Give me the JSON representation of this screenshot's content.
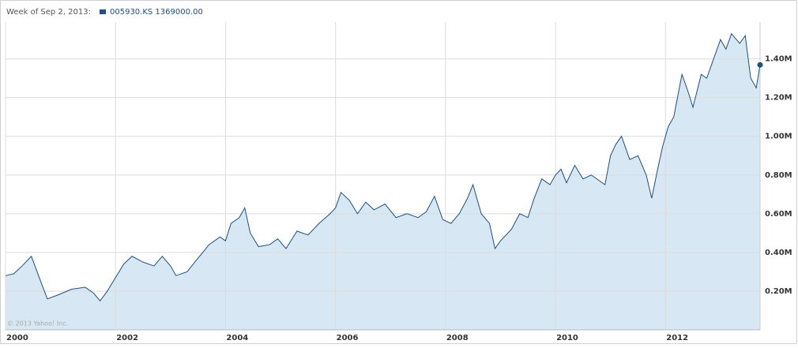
{
  "chart_data": {
    "type": "area",
    "header": "Week of Sep 2, 2013:",
    "watermark": "© 2013 Yahoo! Inc.",
    "series": [
      {
        "name": "005930.KS 1369000.00",
        "color": "#1d4f80",
        "fill": "#d7e7f3",
        "x": [
          2000.0,
          2000.15,
          2000.3,
          2000.47,
          2000.6,
          2000.76,
          2000.95,
          2001.2,
          2001.45,
          2001.6,
          2001.72,
          2001.85,
          2002.0,
          2002.15,
          2002.3,
          2002.5,
          2002.7,
          2002.85,
          2003.0,
          2003.1,
          2003.3,
          2003.5,
          2003.7,
          2003.9,
          2004.0,
          2004.1,
          2004.25,
          2004.35,
          2004.45,
          2004.6,
          2004.8,
          2004.95,
          2005.1,
          2005.3,
          2005.5,
          2005.7,
          2005.9,
          2006.0,
          2006.1,
          2006.25,
          2006.4,
          2006.55,
          2006.7,
          2006.9,
          2007.1,
          2007.3,
          2007.5,
          2007.65,
          2007.8,
          2007.95,
          2008.1,
          2008.25,
          2008.4,
          2008.5,
          2008.65,
          2008.8,
          2008.9,
          2009.0,
          2009.2,
          2009.35,
          2009.5,
          2009.6,
          2009.75,
          2009.9,
          2010.0,
          2010.1,
          2010.2,
          2010.35,
          2010.5,
          2010.65,
          2010.8,
          2010.9,
          2011.0,
          2011.1,
          2011.2,
          2011.35,
          2011.5,
          2011.65,
          2011.75,
          2011.85,
          2011.95,
          2012.05,
          2012.15,
          2012.3,
          2012.4,
          2012.5,
          2012.65,
          2012.75,
          2012.9,
          2013.0,
          2013.1,
          2013.2,
          2013.35,
          2013.45,
          2013.55,
          2013.65,
          2013.72
        ],
        "values": [
          280000,
          290000,
          330000,
          380000,
          280000,
          160000,
          180000,
          210000,
          220000,
          190000,
          150000,
          200000,
          270000,
          340000,
          380000,
          350000,
          330000,
          380000,
          330000,
          280000,
          300000,
          370000,
          440000,
          480000,
          460000,
          550000,
          580000,
          630000,
          500000,
          430000,
          440000,
          470000,
          420000,
          510000,
          490000,
          550000,
          600000,
          630000,
          710000,
          670000,
          600000,
          660000,
          620000,
          650000,
          580000,
          600000,
          580000,
          610000,
          690000,
          570000,
          550000,
          600000,
          680000,
          750000,
          600000,
          550000,
          420000,
          460000,
          520000,
          600000,
          580000,
          670000,
          780000,
          750000,
          800000,
          830000,
          760000,
          850000,
          780000,
          800000,
          770000,
          750000,
          900000,
          960000,
          1000000,
          880000,
          900000,
          800000,
          680000,
          820000,
          950000,
          1050000,
          1100000,
          1320000,
          1240000,
          1150000,
          1320000,
          1300000,
          1420000,
          1500000,
          1450000,
          1530000,
          1480000,
          1520000,
          1300000,
          1250000,
          1369000
        ]
      }
    ],
    "xlim": [
      2000,
      2013.72
    ],
    "xticks": [
      2000,
      2002,
      2004,
      2006,
      2008,
      2010,
      2012
    ],
    "ylim": [
      0,
      1590000
    ],
    "yticks": [
      {
        "value": 200000,
        "label": "0.20M"
      },
      {
        "value": 400000,
        "label": "0.40M"
      },
      {
        "value": 600000,
        "label": "0.60M"
      },
      {
        "value": 800000,
        "label": "0.80M"
      },
      {
        "value": 1000000,
        "label": "1.00M"
      },
      {
        "value": 1200000,
        "label": "1.20M"
      },
      {
        "value": 1400000,
        "label": "1.40M"
      }
    ],
    "grid": true
  }
}
